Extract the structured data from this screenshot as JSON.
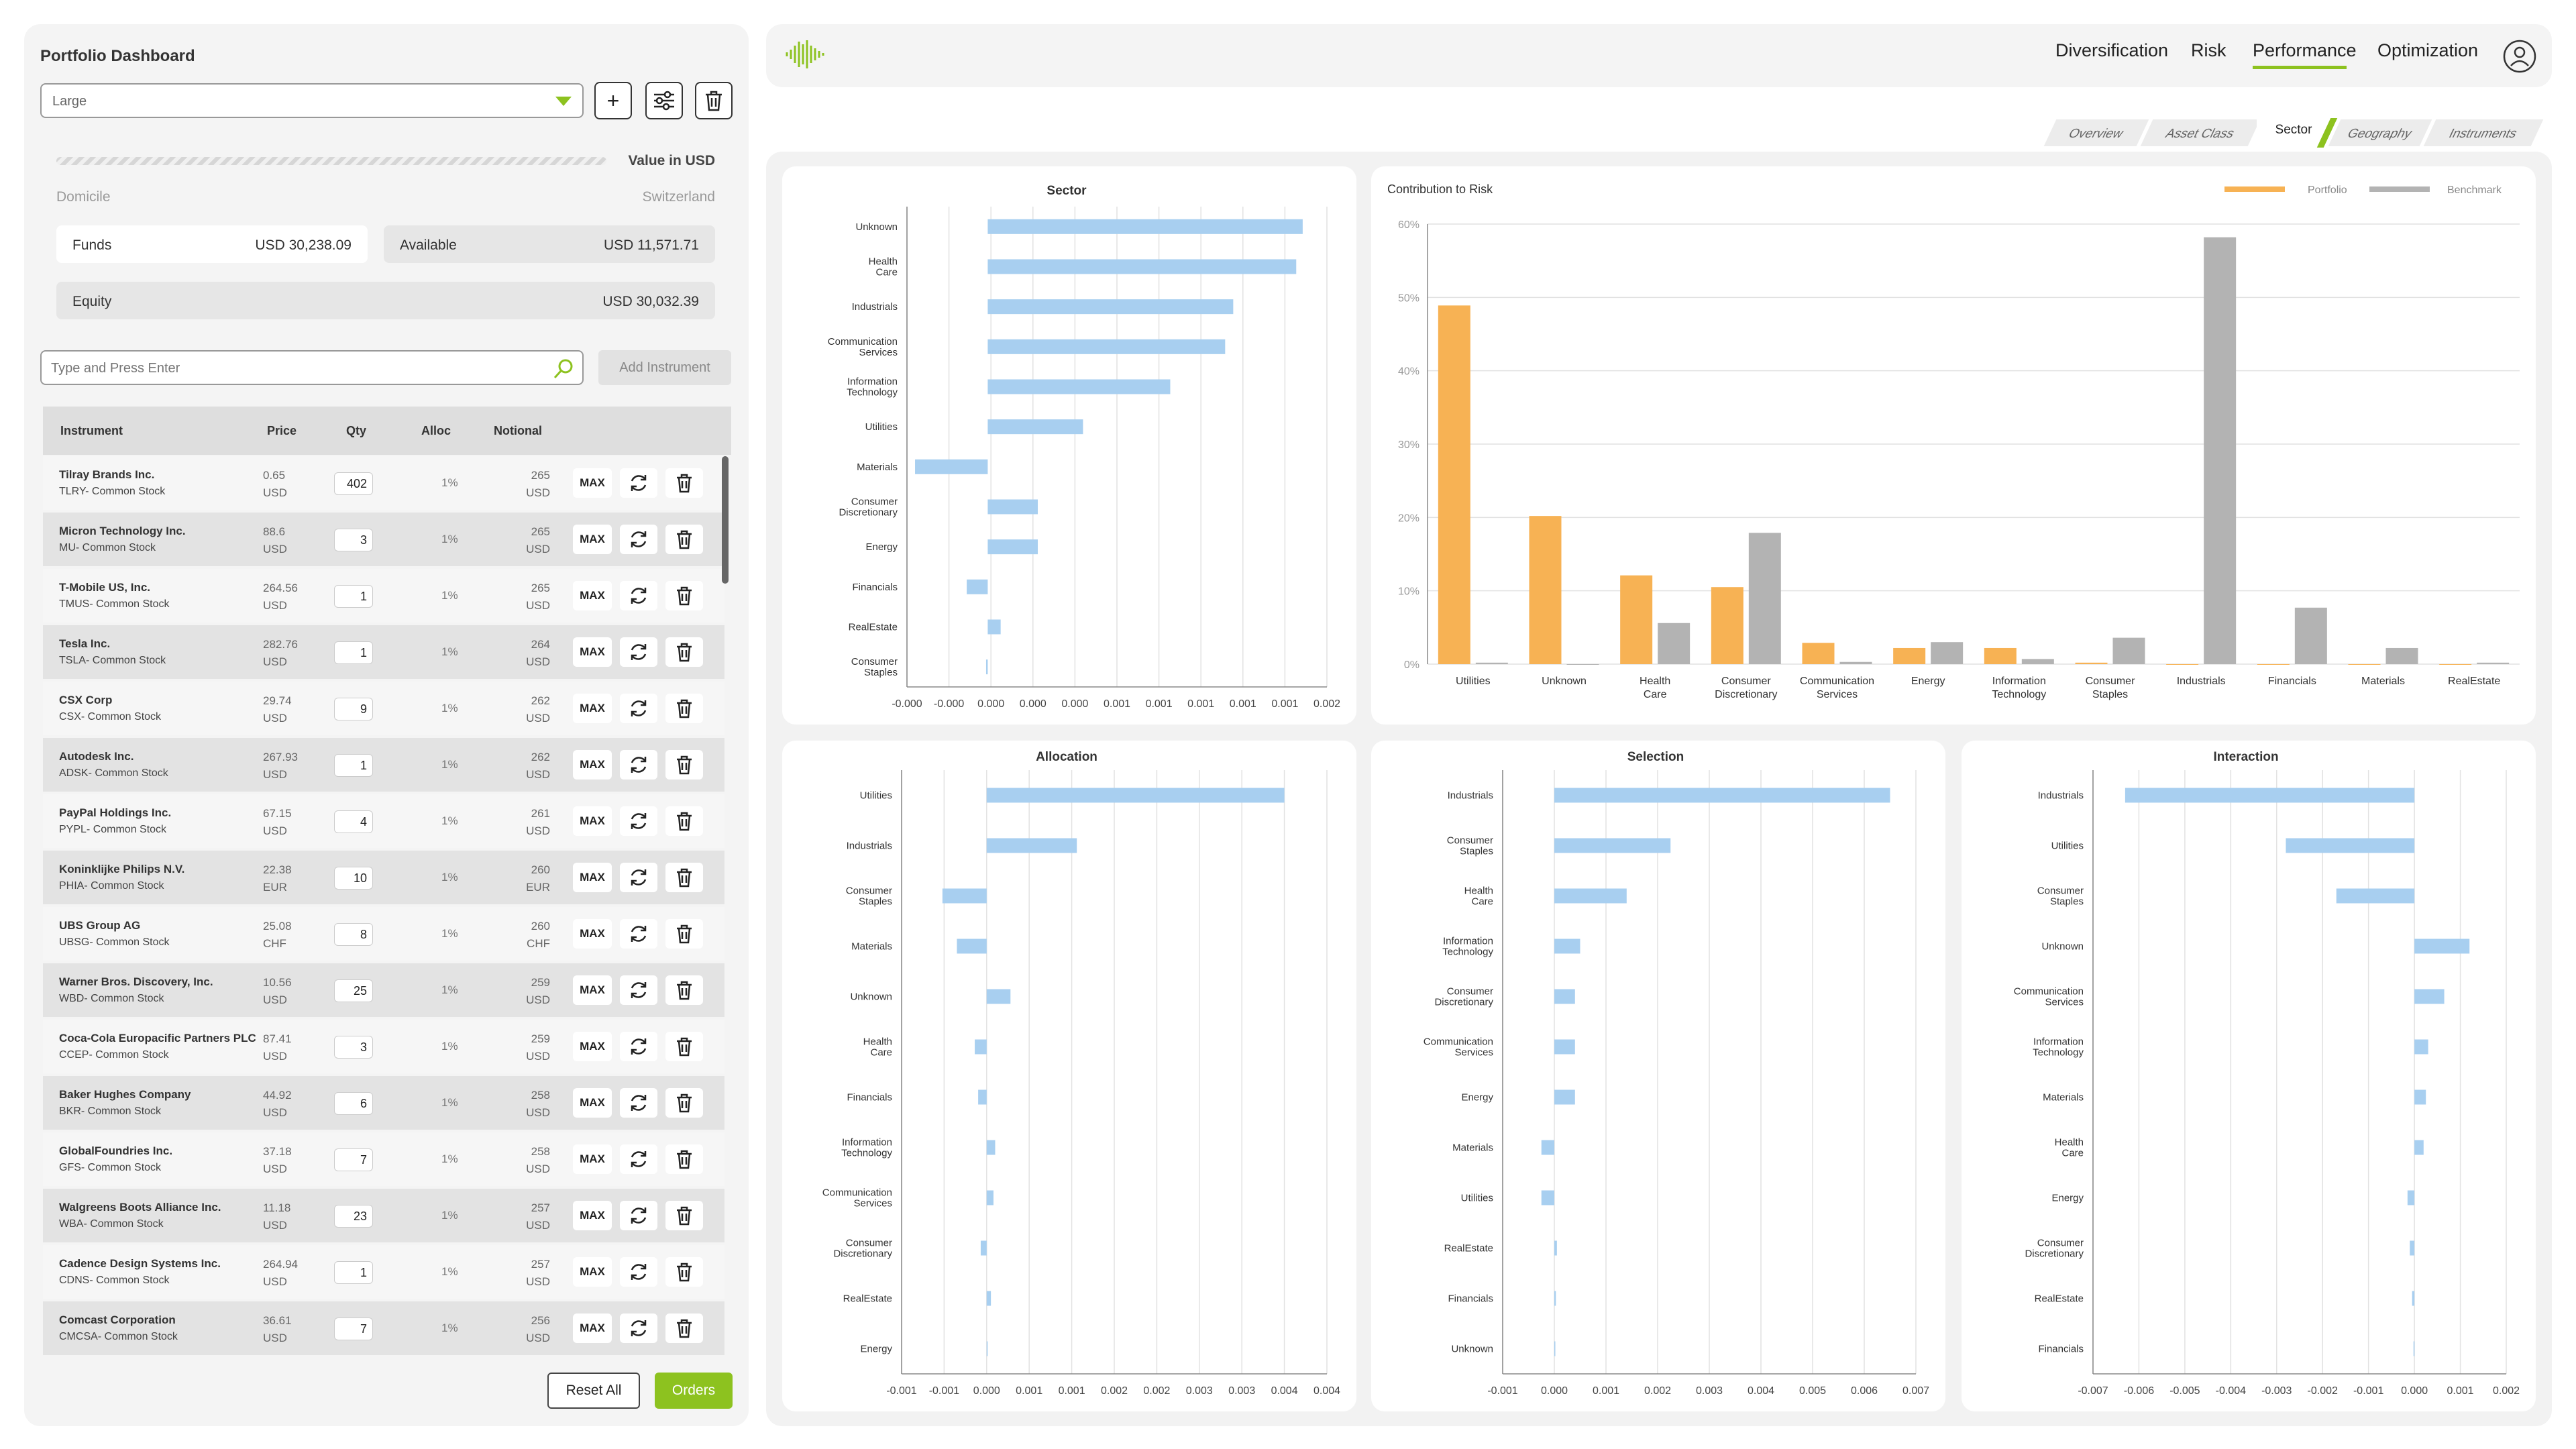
{
  "app": {
    "title": "Portfolio Dashboard"
  },
  "left": {
    "portfolio_select": "Large",
    "value_label": "Value in USD",
    "domicile_label": "Domicile",
    "domicile_value": "Switzerland",
    "funds_label": "Funds",
    "funds_value": "USD 30,238.09",
    "available_label": "Available",
    "available_value": "USD 11,571.71",
    "equity_label": "Equity",
    "equity_value": "USD 30,032.39",
    "search_placeholder": "Type and Press Enter",
    "add_instrument": "Add Instrument",
    "plus_glyph": "+",
    "columns": [
      "Instrument",
      "Price",
      "Qty",
      "Alloc",
      "Notional"
    ],
    "max_label": "MAX",
    "reset_all": "Reset All",
    "orders": "Orders",
    "rows": [
      {
        "name": "Tilray Brands Inc.",
        "sub": "TLRY- Common Stock",
        "price": "0.65",
        "cur": "USD",
        "qty": "402",
        "alloc": "1%",
        "notional": "265",
        "ncur": "USD"
      },
      {
        "name": "Micron Technology Inc.",
        "sub": "MU- Common Stock",
        "price": "88.6",
        "cur": "USD",
        "qty": "3",
        "alloc": "1%",
        "notional": "265",
        "ncur": "USD"
      },
      {
        "name": "T-Mobile US, Inc.",
        "sub": "TMUS- Common Stock",
        "price": "264.56",
        "cur": "USD",
        "qty": "1",
        "alloc": "1%",
        "notional": "265",
        "ncur": "USD"
      },
      {
        "name": "Tesla Inc.",
        "sub": "TSLA- Common Stock",
        "price": "282.76",
        "cur": "USD",
        "qty": "1",
        "alloc": "1%",
        "notional": "264",
        "ncur": "USD"
      },
      {
        "name": "CSX Corp",
        "sub": "CSX- Common Stock",
        "price": "29.74",
        "cur": "USD",
        "qty": "9",
        "alloc": "1%",
        "notional": "262",
        "ncur": "USD"
      },
      {
        "name": "Autodesk Inc.",
        "sub": "ADSK- Common Stock",
        "price": "267.93",
        "cur": "USD",
        "qty": "1",
        "alloc": "1%",
        "notional": "262",
        "ncur": "USD"
      },
      {
        "name": "PayPal Holdings Inc.",
        "sub": "PYPL- Common Stock",
        "price": "67.15",
        "cur": "USD",
        "qty": "4",
        "alloc": "1%",
        "notional": "261",
        "ncur": "USD"
      },
      {
        "name": "Koninklijke Philips N.V.",
        "sub": "PHIA- Common Stock",
        "price": "22.38",
        "cur": "EUR",
        "qty": "10",
        "alloc": "1%",
        "notional": "260",
        "ncur": "EUR"
      },
      {
        "name": "UBS Group AG",
        "sub": "UBSG- Common Stock",
        "price": "25.08",
        "cur": "CHF",
        "qty": "8",
        "alloc": "1%",
        "notional": "260",
        "ncur": "CHF"
      },
      {
        "name": "Warner Bros. Discovery, Inc.",
        "sub": "WBD- Common Stock",
        "price": "10.56",
        "cur": "USD",
        "qty": "25",
        "alloc": "1%",
        "notional": "259",
        "ncur": "USD"
      },
      {
        "name": "Coca-Cola Europacific Partners PLC",
        "sub": "CCEP- Common Stock",
        "price": "87.41",
        "cur": "USD",
        "qty": "3",
        "alloc": "1%",
        "notional": "259",
        "ncur": "USD"
      },
      {
        "name": "Baker Hughes Company",
        "sub": "BKR- Common Stock",
        "price": "44.92",
        "cur": "USD",
        "qty": "6",
        "alloc": "1%",
        "notional": "258",
        "ncur": "USD"
      },
      {
        "name": "GlobalFoundries Inc.",
        "sub": "GFS- Common Stock",
        "price": "37.18",
        "cur": "USD",
        "qty": "7",
        "alloc": "1%",
        "notional": "258",
        "ncur": "USD"
      },
      {
        "name": "Walgreens Boots Alliance Inc.",
        "sub": "WBA- Common Stock",
        "price": "11.18",
        "cur": "USD",
        "qty": "23",
        "alloc": "1%",
        "notional": "257",
        "ncur": "USD"
      },
      {
        "name": "Cadence Design Systems Inc.",
        "sub": "CDNS- Common Stock",
        "price": "264.94",
        "cur": "USD",
        "qty": "1",
        "alloc": "1%",
        "notional": "257",
        "ncur": "USD"
      },
      {
        "name": "Comcast Corporation",
        "sub": "CMCSA- Common Stock",
        "price": "36.61",
        "cur": "USD",
        "qty": "7",
        "alloc": "1%",
        "notional": "256",
        "ncur": "USD"
      }
    ]
  },
  "nav": {
    "tabs": [
      "Diversification",
      "Risk",
      "Performance",
      "Optimization"
    ],
    "active": "Performance",
    "subtabs": [
      "Overview",
      "Asset Class",
      "Sector",
      "Geography",
      "Instruments"
    ],
    "active_subtab": "Sector"
  },
  "colors": {
    "accent": "#8dc21f",
    "portfolio": "#f7b254",
    "benchmark": "#b3b3b3",
    "bar": "#a8cff0"
  },
  "chart_data": [
    {
      "id": "sector",
      "type": "bar",
      "orientation": "horizontal",
      "title": "Sector",
      "categories": [
        "Unknown",
        "Health Care",
        "Industrials",
        "Communication Services",
        "Information Technology",
        "Utilities",
        "Materials",
        "Consumer Discretionary",
        "Energy",
        "Financials",
        "RealEstate",
        "Consumer Staples"
      ],
      "values": [
        0.00195,
        0.00191,
        0.00152,
        0.00147,
        0.00113,
        0.00059,
        -0.00045,
        0.00031,
        0.00031,
        -0.00013,
        8e-05,
        -1e-05
      ],
      "xlim": [
        -0.0005,
        0.0021
      ],
      "ticks": [
        "-0.000",
        "-0.000",
        "0.000",
        "0.000",
        "0.000",
        "0.001",
        "0.001",
        "0.001",
        "0.001",
        "0.001",
        "0.002"
      ]
    },
    {
      "id": "risk",
      "type": "bar",
      "title": "Contribution to Risk",
      "categories": [
        "Utilities",
        "Unknown",
        "Health Care",
        "Consumer Discretionary",
        "Communication Services",
        "Energy",
        "Information Technology",
        "Consumer Staples",
        "Industrials",
        "Financials",
        "Materials",
        "RealEstate"
      ],
      "series": [
        {
          "name": "Portfolio",
          "values": [
            48.9,
            20.2,
            12.1,
            10.5,
            2.9,
            2.2,
            2.2,
            0.2,
            0,
            0,
            0,
            0
          ]
        },
        {
          "name": "Benchmark",
          "values": [
            0.2,
            0,
            5.6,
            17.9,
            0.3,
            3.0,
            0.7,
            3.6,
            58.2,
            7.7,
            2.2,
            0.2
          ]
        }
      ],
      "ylim": [
        0,
        60
      ],
      "ticks": [
        "0%",
        "10%",
        "20%",
        "30%",
        "40%",
        "50%",
        "60%"
      ]
    },
    {
      "id": "allocation",
      "type": "bar",
      "orientation": "horizontal",
      "title": "Allocation",
      "categories": [
        "Utilities",
        "Industrials",
        "Consumer Staples",
        "Materials",
        "Unknown",
        "Health Care",
        "Financials",
        "Information Technology",
        "Communication Services",
        "Consumer Discretionary",
        "RealEstate",
        "Energy"
      ],
      "values": [
        0.0035,
        0.00106,
        -0.00052,
        -0.00035,
        0.00028,
        -0.00014,
        -0.0001,
        0.0001,
        8e-05,
        -7e-05,
        5e-05,
        0
      ],
      "xlim": [
        -0.001,
        0.004
      ],
      "ticks": [
        "-0.001",
        "-0.001",
        "0.000",
        "0.001",
        "0.001",
        "0.002",
        "0.002",
        "0.003",
        "0.003",
        "0.004",
        "0.004"
      ]
    },
    {
      "id": "selection",
      "type": "bar",
      "orientation": "horizontal",
      "title": "Selection",
      "categories": [
        "Industrials",
        "Consumer Staples",
        "Health Care",
        "Information Technology",
        "Consumer Discretionary",
        "Communication Services",
        "Energy",
        "Materials",
        "Utilities",
        "RealEstate",
        "Financials",
        "Unknown"
      ],
      "values": [
        0.0065,
        0.00225,
        0.0014,
        0.0005,
        0.0004,
        0.0004,
        0.0004,
        -0.00025,
        -0.00025,
        5e-05,
        3e-05,
        0
      ],
      "xlim": [
        -0.001,
        0.007
      ],
      "ticks": [
        "-0.001",
        "0.000",
        "0.001",
        "0.002",
        "0.003",
        "0.004",
        "0.005",
        "0.006",
        "0.007"
      ]
    },
    {
      "id": "interaction",
      "type": "bar",
      "orientation": "horizontal",
      "title": "Interaction",
      "categories": [
        "Industrials",
        "Utilities",
        "Consumer Staples",
        "Unknown",
        "Communication Services",
        "Information Technology",
        "Materials",
        "Health Care",
        "Energy",
        "Consumer Discretionary",
        "RealEstate",
        "Financials"
      ],
      "values": [
        -0.0063,
        -0.0028,
        -0.0017,
        0.0012,
        0.00065,
        0.0003,
        0.00025,
        0.0002,
        -0.00015,
        -0.0001,
        -5e-05,
        -2e-05
      ],
      "xlim": [
        -0.007,
        0.002
      ],
      "ticks": [
        "-0.007",
        "-0.006",
        "-0.005",
        "-0.004",
        "-0.003",
        "-0.002",
        "-0.001",
        "0.000",
        "0.001",
        "0.002"
      ]
    }
  ]
}
